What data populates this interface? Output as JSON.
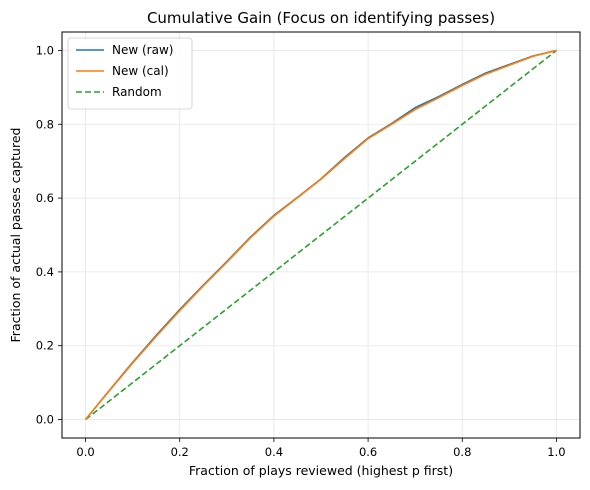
{
  "chart_data": {
    "type": "line",
    "title": "Cumulative Gain (Focus on identifying passes)",
    "xlabel": "Fraction of plays reviewed (highest p first)",
    "ylabel": "Fraction of actual passes captured",
    "xlim": [
      -0.05,
      1.05
    ],
    "ylim": [
      -0.05,
      1.05
    ],
    "xticks": [
      "0.0",
      "0.2",
      "0.4",
      "0.6",
      "0.8",
      "1.0"
    ],
    "yticks": [
      "0.0",
      "0.2",
      "0.4",
      "0.6",
      "0.8",
      "1.0"
    ],
    "grid": true,
    "legend_position": "upper-left",
    "series": [
      {
        "name": "New (raw)",
        "color": "#1f77b4",
        "dash": "solid",
        "x": [
          0.0,
          0.05,
          0.1,
          0.15,
          0.2,
          0.25,
          0.3,
          0.35,
          0.4,
          0.45,
          0.5,
          0.55,
          0.6,
          0.65,
          0.7,
          0.75,
          0.8,
          0.85,
          0.9,
          0.95,
          1.0
        ],
        "y": [
          0.0,
          0.078,
          0.155,
          0.228,
          0.298,
          0.364,
          0.428,
          0.494,
          0.553,
          0.602,
          0.652,
          0.71,
          0.763,
          0.802,
          0.845,
          0.875,
          0.908,
          0.939,
          0.962,
          0.985,
          1.0
        ]
      },
      {
        "name": "New (cal)",
        "color": "#ff7f0e",
        "dash": "solid",
        "x": [
          0.0,
          0.05,
          0.1,
          0.15,
          0.2,
          0.25,
          0.3,
          0.35,
          0.4,
          0.45,
          0.5,
          0.55,
          0.6,
          0.65,
          0.7,
          0.75,
          0.8,
          0.85,
          0.9,
          0.95,
          1.0
        ],
        "y": [
          0.0,
          0.077,
          0.153,
          0.225,
          0.295,
          0.362,
          0.426,
          0.492,
          0.551,
          0.601,
          0.651,
          0.707,
          0.761,
          0.8,
          0.84,
          0.872,
          0.905,
          0.936,
          0.96,
          0.984,
          1.0
        ]
      },
      {
        "name": "Random",
        "color": "#2ca02c",
        "dash": "dashed",
        "x": [
          0.0,
          1.0
        ],
        "y": [
          0.0,
          1.0
        ]
      }
    ]
  }
}
